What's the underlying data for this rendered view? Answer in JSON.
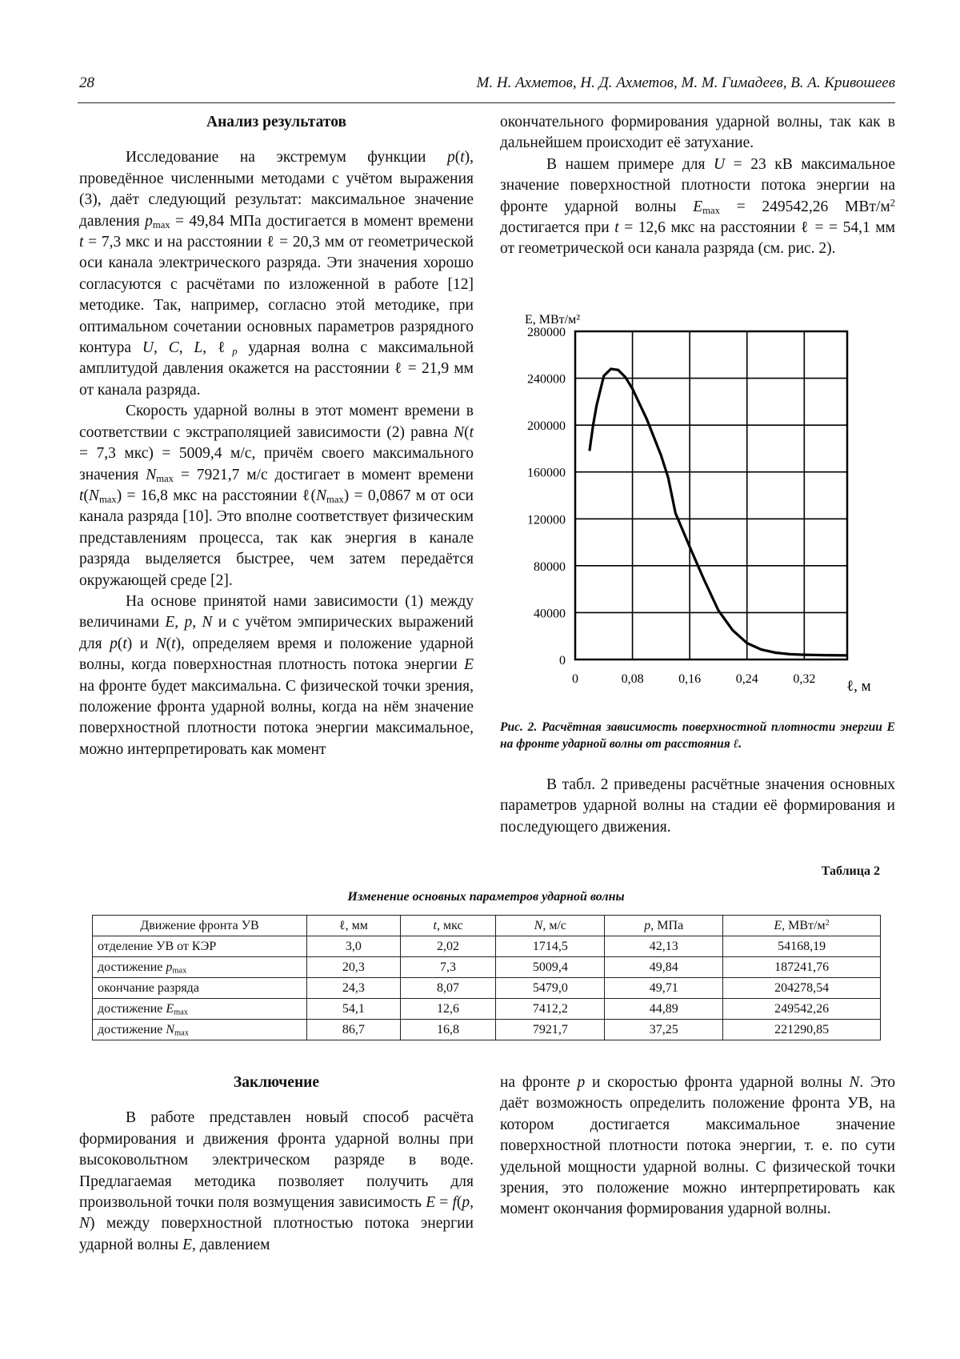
{
  "header": {
    "page_number": "28",
    "authors": "М. Н. Ахметов, Н. Д. Ахметов, М. М. Гимадеев, В. А. Кривошеев"
  },
  "section1": {
    "title": "Анализ результатов",
    "left_paragraphs": [
      "Исследование на экстремум функции <i>p</i>(<i>t</i>), проведённое численными методами с учётом выражения (3), даёт следующий результат: максимальное значение давления <i>p</i><sub>max</sub>&nbsp;=&nbsp;49,84&nbsp;МПа достигается в момент времени <i>t</i>&nbsp;=&nbsp;7,3&nbsp;мкс и на расстоянии ℓ&nbsp;=&nbsp;20,3&nbsp;мм от геометрической оси канала электрического разряда. Эти значения хорошо согласуются с расчётами по изложенной в работе [12] методике. Так, например, согласно этой методике, при оптимальном сочетании основных параметров разрядного контура <i>U</i>, <i>C</i>, <i>L</i>, ℓ<sub><i>p</i></sub> ударная волна с максимальной амплитудой давления окажется на расстоянии ℓ&nbsp;=&nbsp;21,9&nbsp;мм от канала разряда.",
      "Скорость ударной волны в этот момент времени в соответствии с экстраполяцией зависимости (2) равна <i>N</i>(<i>t</i> = 7,3 мкс) = 5009,4 м/с, причём своего максимального значения <i>N</i><sub>max</sub> = 7921,7 м/с достигает в момент времени <i>t</i>(<i>N</i><sub>max</sub>) = 16,8 мкс на расстоянии ℓ(<i>N</i><sub>max</sub>) = 0,0867 м от оси канала разряда [10]. Это вполне соответствует физическим представлениям процесса, так как энергия в канале разряда выделяется быстрее, чем затем передаётся окружающей среде [2].",
      "На основе принятой нами зависимости (1) между величинами <i>E</i>, <i>p</i>, <i>N</i> и с учётом эмпирических выражений для <i>p</i>(<i>t</i>) и <i>N</i>(<i>t</i>), определяем время и положение ударной волны, когда поверхностная плотность потока энергии <i>E</i> на фронте будет максимальна. С физической точки зрения, положение фронта ударной волны, когда на нём значение поверхностной плотности потока энергии максимальное, можно интерпретировать как момент"
    ],
    "right_paragraphs": [
      "окончательного формирования ударной волны, так как в дальнейшем происходит её затухание.",
      "В нашем примере для <i>U</i> = 23 кВ максимальное значение поверхностной плотности потока энергии на фронте ударной волны <i>E</i><sub>max</sub> = 249542,26 МВт/м<sup>2</sup> достигается при <i>t</i> = 12,6 мкс на расстоянии ℓ = = 54,1 мм от геометрической оси канала разряда (см. рис. 2)."
    ],
    "figure_caption": "Рис. 2. Расчётная зависимость поверхностной плотности энергии E на фронте ударной волны от расстояния ℓ.",
    "after_figure": "В табл. 2 приведены расчётные значения основных параметров ударной волны на стадии её формирования и последующего движения."
  },
  "chart_data": {
    "type": "line",
    "title": "",
    "xlabel": "ℓ, м",
    "ylabel": "E, МВт/м²",
    "xlim": [
      0,
      0.38
    ],
    "ylim": [
      0,
      280000
    ],
    "grid": true,
    "x_ticks": [
      "0",
      "0,08",
      "0,16",
      "0,24",
      "0,32"
    ],
    "x_tick_values": [
      0,
      0.08,
      0.16,
      0.24,
      0.32
    ],
    "y_ticks": [
      "0",
      "40000",
      "80000",
      "120000",
      "160000",
      "200000",
      "240000",
      "280000"
    ],
    "y_tick_values": [
      0,
      40000,
      80000,
      120000,
      160000,
      200000,
      240000,
      280000
    ],
    "series": [
      {
        "x": [
          0.02,
          0.025,
          0.03,
          0.04,
          0.05,
          0.06,
          0.07,
          0.08,
          0.1,
          0.12,
          0.13,
          0.14,
          0.16,
          0.18,
          0.2,
          0.22,
          0.24,
          0.26,
          0.28,
          0.3,
          0.32,
          0.35,
          0.38
        ],
        "y": [
          178000,
          200000,
          217000,
          242000,
          248000,
          247000,
          241000,
          231000,
          205000,
          174000,
          155000,
          125000,
          96000,
          68000,
          42000,
          25000,
          14000,
          8500,
          5800,
          4500,
          4000,
          3700,
          3500
        ]
      }
    ]
  },
  "table": {
    "label": "Таблица 2",
    "caption": "Изменение основных параметров ударной волны",
    "headers": [
      "Движение фронта УВ",
      "ℓ, мм",
      "<i>t</i>, мкс",
      "<i>N</i>, м/с",
      "<i>p</i>, МПа",
      "<i>E</i>, МВт/м<sup>2</sup>"
    ],
    "rows": [
      [
        "отделение УВ от КЭР",
        "3,0",
        "2,02",
        "1714,5",
        "42,13",
        "54168,19"
      ],
      [
        "достижение <i>p</i><sub>max</sub>",
        "20,3",
        "7,3",
        "5009,4",
        "49,84",
        "187241,76"
      ],
      [
        "окончание разряда",
        "24,3",
        "8,07",
        "5479,0",
        "49,71",
        "204278,54"
      ],
      [
        "достижение <i>E</i><sub>max</sub>",
        "54,1",
        "12,6",
        "7412,2",
        "44,89",
        "249542,26"
      ],
      [
        "достижение <i>N</i><sub>max</sub>",
        "86,7",
        "16,8",
        "7921,7",
        "37,25",
        "221290,85"
      ]
    ]
  },
  "conclusion": {
    "title": "Заключение",
    "left": "В работе представлен новый способ расчёта формирования и движения фронта ударной волны при высоковольтном электрическом разряде в воде. Предлагаемая методика позволяет получить для произвольной точки поля возмущения зависимость <i>E</i> = <i>f</i>(<i>p</i>, <i>N</i>) между поверхностной плотностью потока энергии ударной волны <i>E</i>, давлением",
    "right": "на фронте <i>p</i> и скоростью фронта ударной волны <i>N</i>. Это даёт возможность определить положение фронта УВ, на котором достигается максимальное значение поверхностной плотности потока энергии, т. е. по сути удельной мощности ударной волны. С физической точки зрения, это положение можно интерпретировать как момент окончания формирования ударной волны."
  }
}
